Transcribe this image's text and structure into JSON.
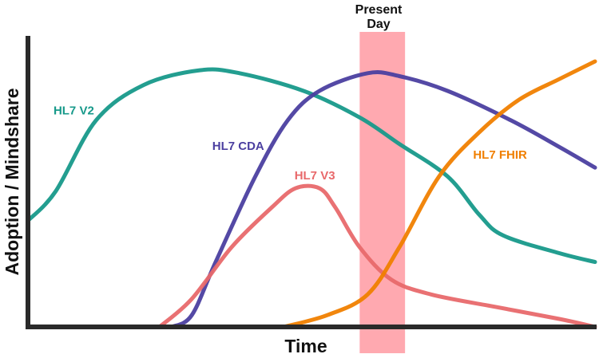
{
  "chart_data": {
    "type": "line",
    "title": "",
    "xlabel": "Time",
    "ylabel": "Adoption / Mindshare",
    "xlim": [
      0,
      100
    ],
    "ylim": [
      0,
      100
    ],
    "grid": false,
    "annotations": [
      {
        "text_lines": [
          "Present",
          "Day"
        ],
        "band_x": [
          58.5,
          66.5
        ],
        "color": "#ff9aa2"
      }
    ],
    "series": [
      {
        "name": "HL7 V2",
        "color": "#17998a",
        "x": [
          0,
          4.9,
          12,
          20.4,
          30.3,
          37.3,
          48.6,
          58.5,
          65.5,
          74,
          79.6,
          83.8,
          93.7,
          100
        ],
        "y": [
          36,
          46,
          70,
          82,
          87,
          86,
          80,
          71,
          62,
          51,
          38,
          31,
          25,
          22
        ],
        "label_pos": [
          4.5,
          72
        ]
      },
      {
        "name": "HL7 CDA",
        "color": "#4b3fa0",
        "x": [
          25.4,
          28.9,
          33.1,
          40.1,
          45.8,
          51.4,
          59.9,
          65.5,
          74,
          85.2,
          93.7,
          100
        ],
        "y": [
          0,
          4,
          22,
          51,
          70,
          80,
          86,
          85,
          80,
          70,
          61,
          54
        ],
        "label_pos": [
          32.5,
          60
        ]
      },
      {
        "name": "HL7 V3",
        "color": "#e8696b",
        "x": [
          23.2,
          28.9,
          35.9,
          43,
          47.2,
          51.4,
          54.2,
          58.5,
          64.1,
          71.1,
          82.4,
          93.7,
          100
        ],
        "y": [
          0,
          9.5,
          27,
          40.5,
          47,
          47,
          40.5,
          27,
          16,
          11,
          6.8,
          2.7,
          0
        ],
        "label_pos": [
          47,
          50
        ]
      },
      {
        "name": "HL7 FHIR",
        "color": "#f07f00",
        "x": [
          45.1,
          52.8,
          59.9,
          65.5,
          72.5,
          79.6,
          86.6,
          93.7,
          100
        ],
        "y": [
          0,
          4,
          11,
          27,
          51,
          66,
          77,
          84,
          90
        ],
        "label_pos": [
          78.5,
          57
        ]
      }
    ]
  }
}
